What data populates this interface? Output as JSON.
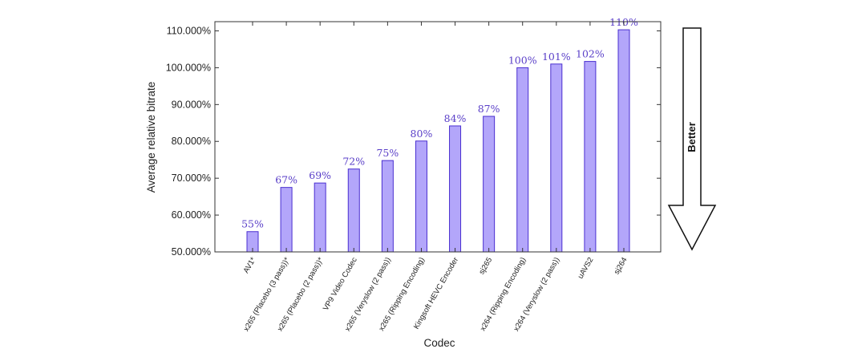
{
  "chart_data": {
    "type": "bar",
    "xlabel": "Codec",
    "ylabel": "Average relative bitrate",
    "ylim": [
      50,
      112.5
    ],
    "yticks": [
      50,
      60,
      70,
      80,
      90,
      100,
      110
    ],
    "ytick_labels": [
      "50.000%",
      "60.000%",
      "70.000%",
      "80.000%",
      "90.000%",
      "100.000%",
      "110.000%"
    ],
    "categories": [
      "AV1*",
      "x265 (Placebo (3 pass))*",
      "x265 (Placebo (2 pass))*",
      "VP9 Video Codec",
      "x265 (Veryslow (2 pass))",
      "x265 (Ripping Encoding)",
      "Kingsoft HEVC Encoder",
      "sj265",
      "x264 (Ripping Encoding)",
      "x264 (Veryslow (2 pass))",
      "uAVS2",
      "sj264"
    ],
    "values": [
      55.5,
      67.5,
      68.7,
      72.5,
      74.8,
      80.1,
      84.2,
      86.8,
      100,
      101,
      101.7,
      110.3
    ],
    "data_labels": [
      "55%",
      "67%",
      "69%",
      "72%",
      "75%",
      "80%",
      "84%",
      "87%",
      "100%",
      "101%",
      "102%",
      "110%"
    ],
    "grid": false,
    "bar_color": "#b3a6fa",
    "bar_edge_color": "#4a2fd0",
    "label_color": "#5a3fc8",
    "annotation": {
      "text": "Better",
      "direction": "down"
    }
  }
}
